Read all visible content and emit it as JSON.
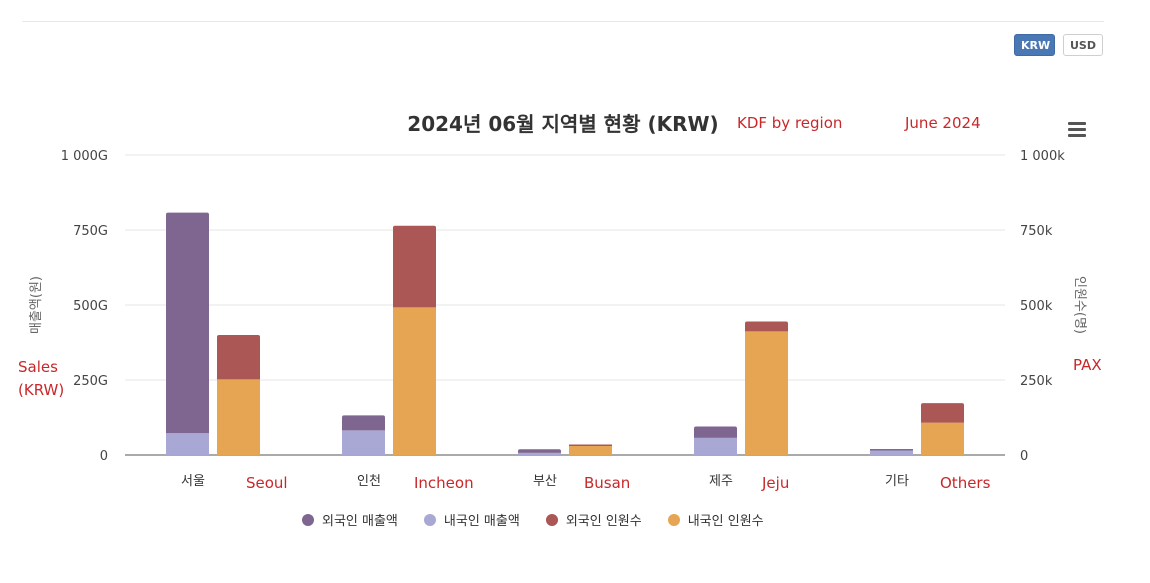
{
  "currency_buttons": {
    "krw": "KRW",
    "usd": "USD"
  },
  "annotations": {
    "subtitle": "KDF by region",
    "date": "June 2024",
    "left_axis_en_line1": "Sales",
    "left_axis_en_line2": "(KRW)",
    "right_axis_en": "PAX",
    "region_en": [
      "Seoul",
      "Incheon",
      "Busan",
      "Jeju",
      "Others"
    ]
  },
  "icons": {
    "menu": "hamburger-menu-icon"
  },
  "chart_data": {
    "type": "bar",
    "stacked": true,
    "title": "2024년 06월 지역별 현황 (KRW)",
    "categories": [
      "서울",
      "인천",
      "부산",
      "제주",
      "기타"
    ],
    "y_left": {
      "label": "매출액(원)",
      "range": [
        0,
        1000
      ],
      "ticks": [
        0,
        250,
        500,
        750,
        1000
      ],
      "tick_labels": [
        "0",
        "250G",
        "500G",
        "750G",
        "1 000G"
      ]
    },
    "y_right": {
      "label": "인원수(명)",
      "range": [
        0,
        1000
      ],
      "ticks": [
        0,
        250,
        500,
        750,
        1000
      ],
      "tick_labels": [
        "0",
        "250k",
        "500k",
        "750k",
        "1 000k"
      ]
    },
    "series": [
      {
        "name": "외국인 매출액",
        "stack": "sales",
        "axis": "left",
        "color": "#7e6690",
        "values": [
          735,
          50,
          12,
          38,
          5
        ]
      },
      {
        "name": "내국인 매출액",
        "stack": "sales",
        "axis": "left",
        "color": "#a9a8d4",
        "values": [
          73,
          82,
          7,
          57,
          15
        ]
      },
      {
        "name": "외국인 인원수",
        "stack": "pax",
        "axis": "right",
        "color": "#ab5755",
        "values": [
          148,
          272,
          5,
          33,
          65
        ]
      },
      {
        "name": "내국인 인원수",
        "stack": "pax",
        "axis": "right",
        "color": "#e5a552",
        "values": [
          252,
          492,
          30,
          412,
          108
        ]
      }
    ],
    "grid": true,
    "legend": "bottom"
  }
}
